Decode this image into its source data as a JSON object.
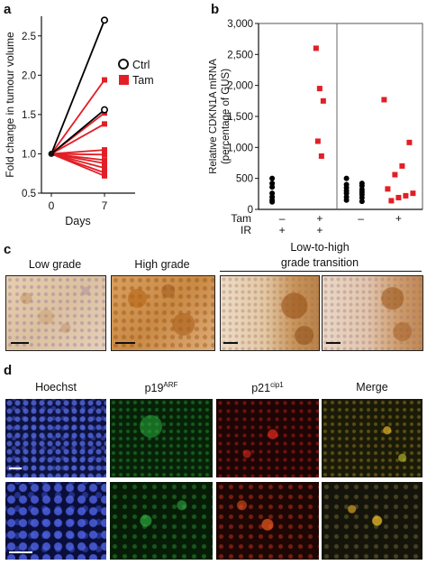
{
  "panel_a": {
    "letter": "a",
    "chart_data": {
      "type": "line",
      "ylabel": "Fold change in tumour volume",
      "xlabel": "Days",
      "x_ticks": [
        "0",
        "7"
      ],
      "y_ticks": [
        "0.5",
        "1.0",
        "1.5",
        "2.0",
        "2.5"
      ],
      "ylim": [
        0.5,
        2.75
      ],
      "legend": [
        {
          "label": "Ctrl",
          "color": "#000000",
          "marker": "open-circle"
        },
        {
          "label": "Tam",
          "color": "#e21f26",
          "marker": "filled-square"
        }
      ],
      "series": [
        {
          "group": "Ctrl",
          "x": [
            0,
            7
          ],
          "values": [
            1.0,
            2.7
          ]
        },
        {
          "group": "Ctrl",
          "x": [
            0,
            7
          ],
          "values": [
            1.0,
            1.56
          ]
        },
        {
          "group": "Tam",
          "x": [
            0,
            7
          ],
          "values": [
            1.0,
            1.94
          ]
        },
        {
          "group": "Tam",
          "x": [
            0,
            7
          ],
          "values": [
            1.0,
            1.52
          ]
        },
        {
          "group": "Tam",
          "x": [
            0,
            7
          ],
          "values": [
            1.0,
            1.38
          ]
        },
        {
          "group": "Tam",
          "x": [
            0,
            7
          ],
          "values": [
            1.0,
            1.05
          ]
        },
        {
          "group": "Tam",
          "x": [
            0,
            7
          ],
          "values": [
            1.0,
            0.99
          ]
        },
        {
          "group": "Tam",
          "x": [
            0,
            7
          ],
          "values": [
            1.0,
            0.92
          ]
        },
        {
          "group": "Tam",
          "x": [
            0,
            7
          ],
          "values": [
            1.0,
            0.88
          ]
        },
        {
          "group": "Tam",
          "x": [
            0,
            7
          ],
          "values": [
            1.0,
            0.82
          ]
        },
        {
          "group": "Tam",
          "x": [
            0,
            7
          ],
          "values": [
            1.0,
            0.76
          ]
        },
        {
          "group": "Tam",
          "x": [
            0,
            7
          ],
          "values": [
            1.0,
            0.72
          ]
        }
      ]
    }
  },
  "panel_b": {
    "letter": "b",
    "chart_data": {
      "type": "scatter",
      "ylabel_line1": "Relative CDKN1A mRNA",
      "ylabel_line2": "(percentage of GUS)",
      "ylim": [
        0,
        3000
      ],
      "y_ticks": [
        "0",
        "500",
        "1,000",
        "1,500",
        "2,000",
        "2,500",
        "3,000"
      ],
      "row_labels": [
        "Tam",
        "IR"
      ],
      "conditions": [
        {
          "tam": "–",
          "ir": "+",
          "marker": "circle",
          "color": "#000000",
          "values": [
            500,
            420,
            360,
            260,
            200,
            150,
            120
          ]
        },
        {
          "tam": "+",
          "ir": "+",
          "marker": "square",
          "color": "#e21f26",
          "values": [
            2600,
            1950,
            1750,
            1100,
            860
          ]
        },
        {
          "tam": "–",
          "ir": "",
          "marker": "circle",
          "color": "#000000",
          "values": [
            500,
            420,
            400,
            380,
            350,
            320,
            300,
            280,
            260,
            240,
            200,
            190,
            150,
            130
          ]
        },
        {
          "tam": "+",
          "ir": "",
          "marker": "square",
          "color": "#e21f26",
          "values": [
            1770,
            1080,
            700,
            560,
            330,
            260,
            220,
            190,
            140
          ]
        }
      ]
    }
  },
  "panel_c": {
    "letter": "c",
    "labels": {
      "low": "Low grade",
      "high": "High grade",
      "transition_line1": "Low-to-high",
      "transition_line2": "grade transition"
    }
  },
  "panel_d": {
    "letter": "d",
    "hoechst": "Hoechst",
    "p19_base": "p19",
    "p19_sup": "ARF",
    "p21_base": "p21",
    "p21_sup": "cip1",
    "merge": "Merge"
  }
}
